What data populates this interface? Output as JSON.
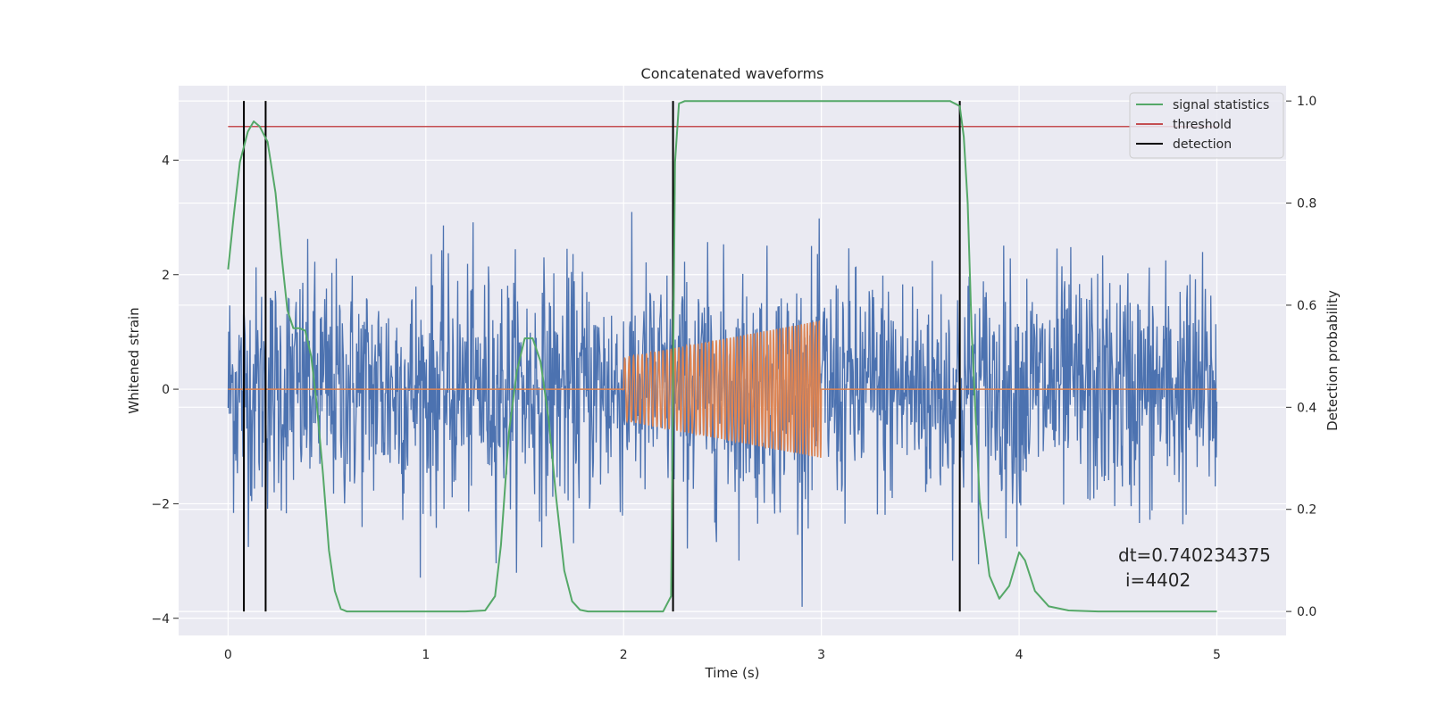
{
  "chart_data": {
    "type": "line",
    "title": "Concatenated waveforms",
    "xlabel": "Time (s)",
    "ylabel": "Whitened strain",
    "ylabel_right": "Detection probability",
    "xlim": [
      -0.25,
      5.35
    ],
    "ylim": [
      -4.3,
      5.3
    ],
    "ylim_right": [
      -0.047,
      1.03
    ],
    "x_ticks": [
      "0",
      "1",
      "2",
      "3",
      "4",
      "5"
    ],
    "y_ticks": [
      "−4",
      "−2",
      "0",
      "2",
      "4"
    ],
    "y_right_ticks": [
      "0.0",
      "0.2",
      "0.4",
      "0.6",
      "0.8",
      "1.0"
    ],
    "grid": true,
    "legend_position": "top-right",
    "colors": {
      "background": "#eaeaf2",
      "strain": "#4c72b0",
      "injection": "#dd8452",
      "statistic": "#55a868",
      "threshold": "#c44e52",
      "detection": "#000000"
    },
    "series": [
      {
        "name": "signal statistics",
        "axis": "right",
        "x": [
          0,
          0.03,
          0.06,
          0.1,
          0.13,
          0.16,
          0.2,
          0.24,
          0.27,
          0.3,
          0.33,
          0.36,
          0.39,
          0.42,
          0.45,
          0.48,
          0.51,
          0.54,
          0.57,
          0.6,
          0.7,
          1.0,
          1.2,
          1.3,
          1.35,
          1.38,
          1.42,
          1.46,
          1.5,
          1.54,
          1.58,
          1.62,
          1.66,
          1.7,
          1.74,
          1.78,
          1.82,
          2.0,
          2.2,
          2.24,
          2.26,
          2.28,
          2.31,
          2.35,
          3.0,
          3.5,
          3.65,
          3.7,
          3.72,
          3.74,
          3.76,
          3.8,
          3.85,
          3.9,
          3.95,
          4.0,
          4.03,
          4.08,
          4.15,
          4.25,
          4.4,
          4.7,
          5.0
        ],
        "values": [
          0.67,
          0.78,
          0.88,
          0.94,
          0.96,
          0.95,
          0.92,
          0.82,
          0.7,
          0.59,
          0.555,
          0.555,
          0.55,
          0.5,
          0.4,
          0.27,
          0.12,
          0.04,
          0.005,
          0.0,
          0.0,
          0.0,
          0.0,
          0.002,
          0.03,
          0.13,
          0.35,
          0.47,
          0.535,
          0.535,
          0.49,
          0.38,
          0.22,
          0.08,
          0.02,
          0.003,
          0.0,
          0.0,
          0.0,
          0.03,
          0.88,
          0.995,
          1.0,
          1.0,
          1.0,
          1.0,
          1.0,
          0.99,
          0.93,
          0.8,
          0.55,
          0.22,
          0.07,
          0.025,
          0.05,
          0.116,
          0.1,
          0.04,
          0.01,
          0.002,
          0.0,
          0.0,
          0.0
        ]
      },
      {
        "name": "threshold",
        "axis": "right",
        "x": [
          0,
          5
        ],
        "values": [
          0.95,
          0.95
        ]
      },
      {
        "name": "detection",
        "axis": "right",
        "x": [
          0.08,
          0.19,
          2.25,
          3.7
        ],
        "values": [
          1.0,
          1.0,
          1.0,
          1.0
        ]
      },
      {
        "axis": "left",
        "x": [
          0,
          5
        ],
        "values": [
          0,
          0
        ]
      },
      {
        "axis": "left",
        "x": [
          2.0,
          3.0
        ],
        "values": [
          0.55,
          1.2
        ]
      }
    ],
    "annotations": [
      "dt=0.740234375",
      "i=4402"
    ]
  }
}
